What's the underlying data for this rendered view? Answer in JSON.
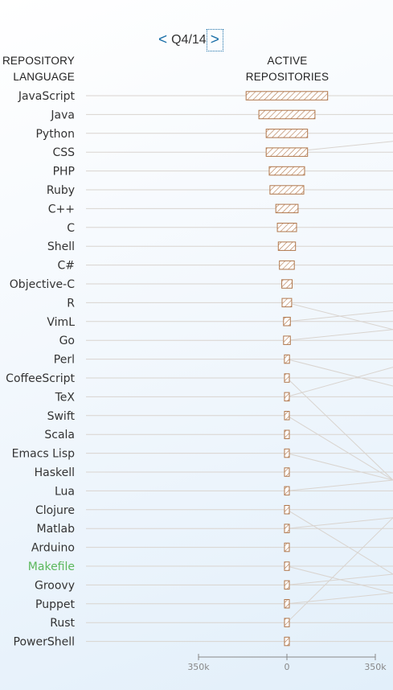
{
  "period": {
    "prev_label": "<",
    "current": "Q4/14",
    "next_label": ">"
  },
  "headers": {
    "language_line1": "REPOSITORY",
    "language_line2": "LANGUAGE",
    "active_line1": "ACTIVE",
    "active_line2": "REPOSITORIES"
  },
  "colors": {
    "bar_stroke": "#b0764a",
    "bar_hatch": "#b0764a",
    "row_line": "#d9d4cf",
    "axis": "#888888",
    "highlight_label": "#5cb85c"
  },
  "chart_data": {
    "type": "bar",
    "orientation": "horizontal-centered",
    "categories": [
      "JavaScript",
      "Java",
      "Python",
      "CSS",
      "PHP",
      "Ruby",
      "C++",
      "C",
      "Shell",
      "C#",
      "Objective-C",
      "R",
      "VimL",
      "Go",
      "Perl",
      "CoffeeScript",
      "TeX",
      "Swift",
      "Scala",
      "Emacs Lisp",
      "Haskell",
      "Lua",
      "Clojure",
      "Matlab",
      "Arduino",
      "Makefile",
      "Groovy",
      "Puppet",
      "Rust",
      "PowerShell"
    ],
    "values": [
      323000,
      222000,
      164000,
      164000,
      140000,
      134000,
      88000,
      76000,
      68000,
      59000,
      41000,
      38000,
      27000,
      27000,
      20000,
      16000,
      15000,
      14000,
      14000,
      14000,
      13000,
      13000,
      11000,
      10000,
      10000,
      9000,
      8000,
      8000,
      8000,
      8000
    ],
    "highlight": "Makefile",
    "xlim": [
      -350000,
      350000
    ],
    "x_ticks": [
      "350k",
      "0",
      "350k"
    ]
  }
}
